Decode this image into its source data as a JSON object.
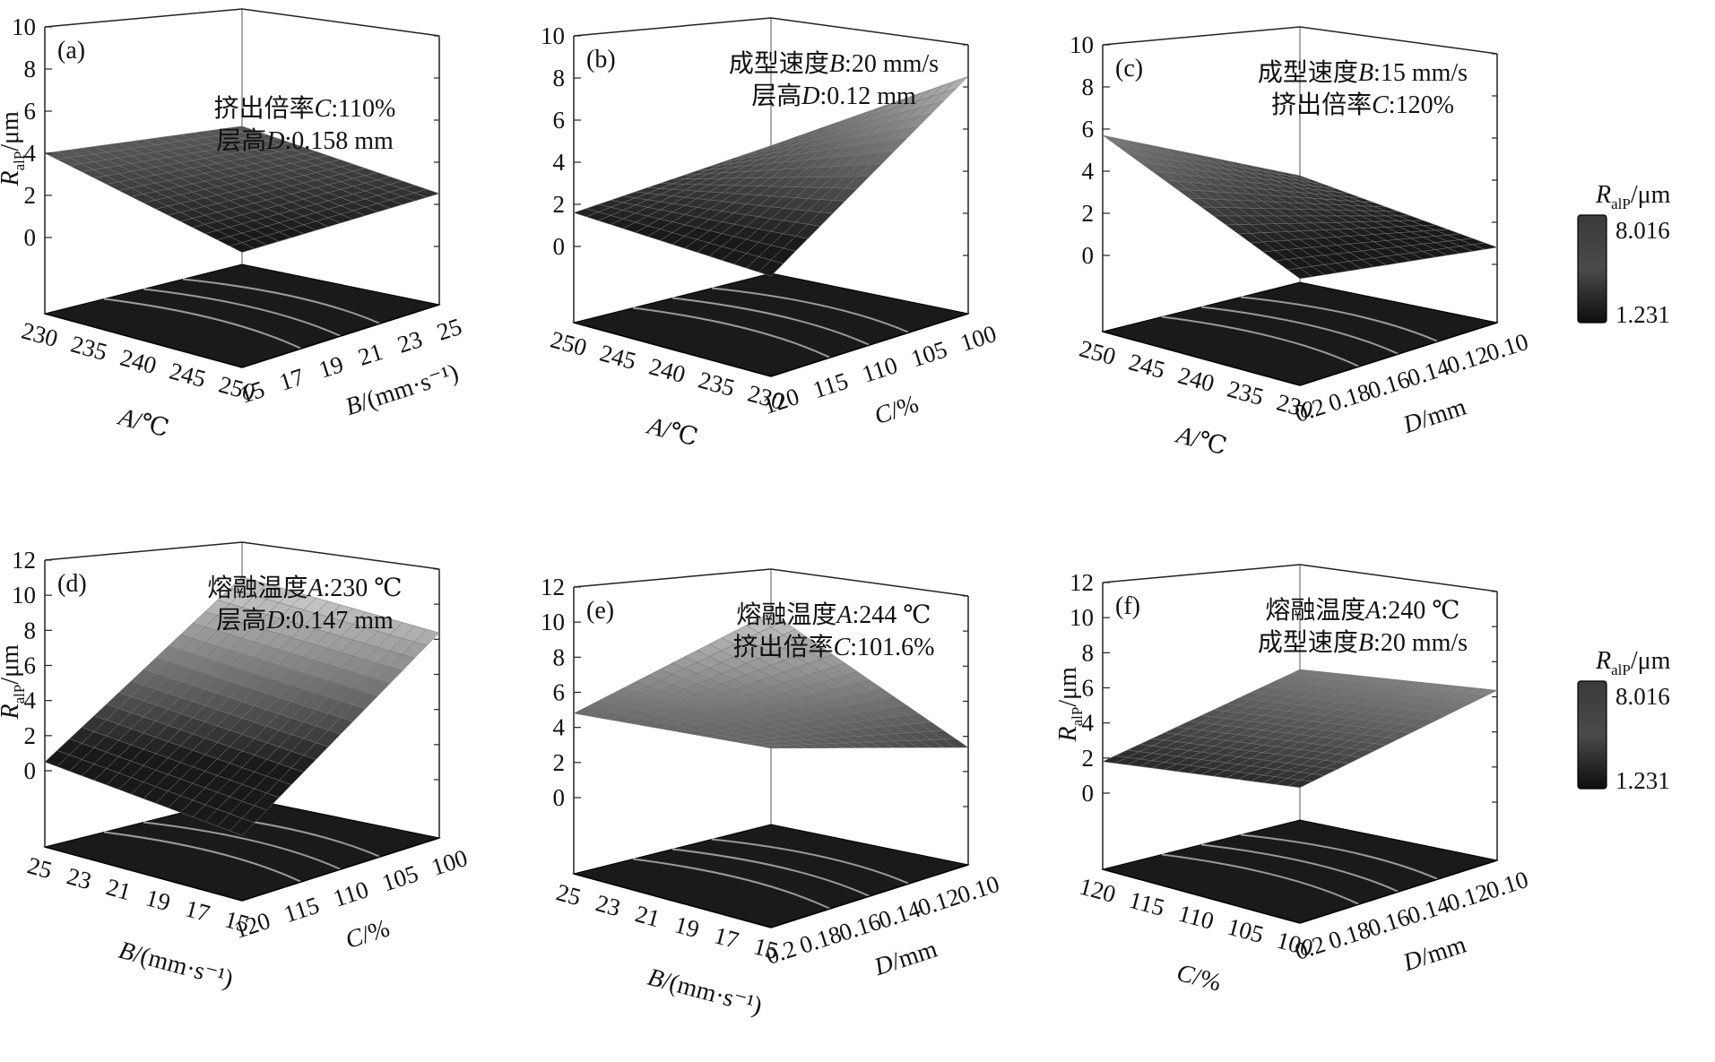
{
  "figure": {
    "colors": {
      "surface_dark": "#111111",
      "surface_light": "#d8d8d8",
      "contour": "#9a9a9a",
      "base": "#1a1a1a"
    }
  },
  "chart_data": [
    {
      "type": "surface3d",
      "panel": "(a)",
      "zlabel": "R_alP/μm",
      "zticks": [
        "0",
        "2",
        "4",
        "6",
        "8",
        "10"
      ],
      "xlabel": "A/℃",
      "xticks": [
        "230",
        "235",
        "240",
        "245",
        "250"
      ],
      "ylabel": "B/(mm·s⁻¹)",
      "yticks": [
        "15",
        "17",
        "19",
        "21",
        "23",
        "25"
      ],
      "annotation": [
        "挤出倍率C:110%",
        "层高D:0.158 mm"
      ],
      "corners_z": {
        "back_left": 4.0,
        "left": 4.0,
        "front": 0.7,
        "right": 2.2
      },
      "z_range": [
        0,
        10
      ]
    },
    {
      "type": "surface3d",
      "panel": "(b)",
      "zlabel": "",
      "zticks": [
        "0",
        "2",
        "4",
        "6",
        "8",
        "10"
      ],
      "xlabel": "A/℃",
      "xticks": [
        "250",
        "245",
        "240",
        "235",
        "230"
      ],
      "ylabel": "C/%",
      "yticks": [
        "120",
        "115",
        "110",
        "105",
        "100"
      ],
      "annotation": [
        "成型速度B:20 mm/s",
        "层高D:0.12 mm"
      ],
      "corners_z": {
        "back_left": 3.5,
        "left": 1.6,
        "front": 0.0,
        "right": 8.2
      },
      "z_range": [
        0,
        10
      ]
    },
    {
      "type": "surface3d",
      "panel": "(c)",
      "zlabel": "",
      "zticks": [
        "0",
        "2",
        "4",
        "6",
        "8",
        "10"
      ],
      "xlabel": "A/℃",
      "xticks": [
        "250",
        "245",
        "240",
        "235",
        "230"
      ],
      "ylabel": "D/mm",
      "yticks": [
        "0.2",
        "0.18",
        "0.16",
        "0.14",
        "0.12",
        "0.10"
      ],
      "annotation": [
        "成型速度B:15 mm/s",
        "挤出倍率C:120%"
      ],
      "corners_z": {
        "back_left": 2.5,
        "left": 5.7,
        "front": 0.3,
        "right": 0.5
      },
      "z_range": [
        0,
        10
      ]
    },
    {
      "type": "surface3d",
      "panel": "(d)",
      "zlabel": "R_alP/μm",
      "zticks": [
        "0",
        "2",
        "4",
        "6",
        "8",
        "10",
        "12"
      ],
      "xlabel": "B/(mm·s⁻¹)",
      "xticks": [
        "25",
        "23",
        "21",
        "19",
        "17",
        "15"
      ],
      "ylabel": "C/%",
      "yticks": [
        "120",
        "115",
        "110",
        "105",
        "100"
      ],
      "annotation": [
        "熔融温度A:230 ℃",
        "层高D:0.147 mm"
      ],
      "corners_z": {
        "back_left": 9.5,
        "left": 0.5,
        "front": -2.0,
        "right": 8.0
      },
      "z_range": [
        0,
        12
      ]
    },
    {
      "type": "surface3d",
      "panel": "(e)",
      "zlabel": "",
      "zticks": [
        "0",
        "2",
        "4",
        "6",
        "8",
        "10",
        "12"
      ],
      "xlabel": "B/(mm·s⁻¹)",
      "xticks": [
        "25",
        "23",
        "21",
        "19",
        "17",
        "15"
      ],
      "ylabel": "D/mm",
      "yticks": [
        "0.2",
        "0.18",
        "0.16",
        "0.14",
        "0.12",
        "0.10"
      ],
      "annotation": [
        "熔融温度A:244 ℃",
        "挤出倍率C:101.6%"
      ],
      "corners_z": {
        "back_left": 9.0,
        "left": 4.8,
        "front": 4.5,
        "right": 3.0
      },
      "z_range": [
        0,
        12
      ]
    },
    {
      "type": "surface3d",
      "panel": "(f)",
      "zlabel": "R_alP/μm",
      "zticks": [
        "0",
        "2",
        "4",
        "6",
        "8",
        "10",
        "12"
      ],
      "xlabel": "C/%",
      "xticks": [
        "120",
        "115",
        "110",
        "105",
        "100"
      ],
      "ylabel": "D/mm",
      "yticks": [
        "0.2",
        "0.18",
        "0.16",
        "0.14",
        "0.12",
        "0.10"
      ],
      "annotation": [
        "熔融温度A:240 ℃",
        "成型速度B:20 mm/s"
      ],
      "corners_z": {
        "back_left": 5.5,
        "left": 1.8,
        "front": 2.0,
        "right": 6.0
      },
      "z_range": [
        0,
        12
      ]
    }
  ],
  "colorbars": [
    {
      "label": "R_alP/μm",
      "max": "8.016",
      "min": "1.231"
    },
    {
      "label": "R_alP/μm",
      "max": "8.016",
      "min": "1.231"
    }
  ]
}
